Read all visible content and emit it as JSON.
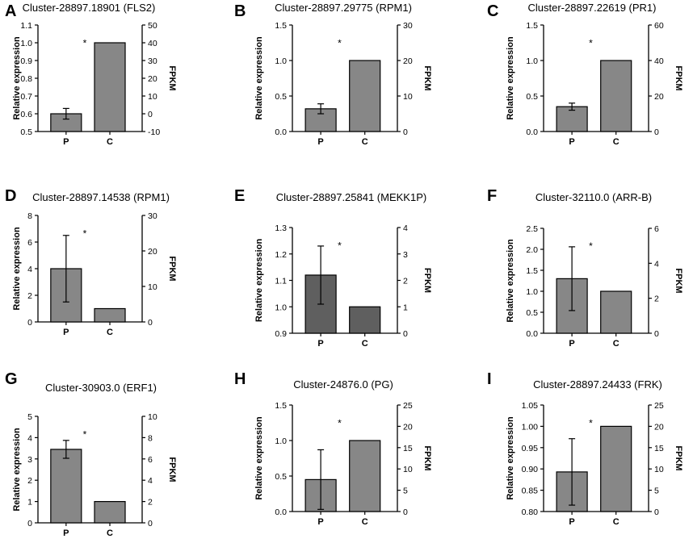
{
  "figure": {
    "colors": {
      "bar_light": "#878787",
      "bar_dark": "#5f5f5f",
      "axis": "#000000"
    }
  },
  "chart_data": [
    {
      "panel": "A",
      "type": "bar",
      "title": "Cluster-28897.18901 (FLS2)",
      "categories": [
        "P",
        "C"
      ],
      "values": [
        0.6,
        1.0
      ],
      "errors": [
        0.03,
        null
      ],
      "ylabel": "Relative expression",
      "ylim": [
        0.5,
        1.1
      ],
      "yticks": [
        "0.5",
        "0.6",
        "0.7",
        "0.8",
        "0.9",
        "1.0",
        "1.1"
      ],
      "y2label": "FPKM",
      "y2lim": [
        -10,
        50
      ],
      "y2ticks": [
        "-10",
        "0",
        "10",
        "20",
        "30",
        "40",
        "50"
      ],
      "annotation": "*",
      "bar_color": "light"
    },
    {
      "panel": "B",
      "type": "bar",
      "title": "Cluster-28897.29775 (RPM1)",
      "categories": [
        "P",
        "C"
      ],
      "values": [
        0.32,
        1.0
      ],
      "errors": [
        0.07,
        null
      ],
      "ylabel": "Relative expression",
      "ylim": [
        0,
        1.5
      ],
      "yticks": [
        "0.0",
        "0.5",
        "1.0",
        "1.5"
      ],
      "y2label": "FPKM",
      "y2lim": [
        0,
        30
      ],
      "y2ticks": [
        "0",
        "10",
        "20",
        "30"
      ],
      "annotation": "*",
      "bar_color": "light"
    },
    {
      "panel": "C",
      "type": "bar",
      "title": "Cluster-28897.22619 (PR1)",
      "categories": [
        "P",
        "C"
      ],
      "values": [
        0.35,
        1.0
      ],
      "errors": [
        0.05,
        null
      ],
      "ylabel": "Relative expression",
      "ylim": [
        0,
        1.5
      ],
      "yticks": [
        "0.0",
        "0.5",
        "1.0",
        "1.5"
      ],
      "y2label": "FPKM",
      "y2lim": [
        0,
        60
      ],
      "y2ticks": [
        "0",
        "20",
        "40",
        "60"
      ],
      "annotation": "*",
      "bar_color": "light"
    },
    {
      "panel": "D",
      "type": "bar",
      "title": "Cluster-28897.14538 (RPM1)",
      "categories": [
        "P",
        "C"
      ],
      "values": [
        4.0,
        1.0
      ],
      "errors": [
        2.5,
        null
      ],
      "ylabel": "Relative expression",
      "ylim": [
        0,
        8
      ],
      "yticks": [
        "0",
        "2",
        "4",
        "6",
        "8"
      ],
      "y2label": "FPKM",
      "y2lim": [
        0,
        30
      ],
      "y2ticks": [
        "0",
        "10",
        "20",
        "30"
      ],
      "annotation": "*",
      "bar_color": "light"
    },
    {
      "panel": "E",
      "type": "bar",
      "title": "Cluster-28897.25841 (MEKK1P)",
      "categories": [
        "P",
        "C"
      ],
      "values": [
        1.12,
        1.0
      ],
      "errors": [
        0.11,
        null
      ],
      "ylabel": "Relative expression",
      "ylim": [
        0.9,
        1.3
      ],
      "yticks": [
        "0.9",
        "1.0",
        "1.1",
        "1.2",
        "1.3"
      ],
      "y2label": "FPKM",
      "y2lim": [
        0,
        4
      ],
      "y2ticks": [
        "0",
        "1",
        "2",
        "3",
        "4"
      ],
      "annotation": "*",
      "bar_color": "dark"
    },
    {
      "panel": "F",
      "type": "bar",
      "title": "Cluster-32110.0 (ARR-B)",
      "categories": [
        "P",
        "C"
      ],
      "values": [
        1.3,
        1.0
      ],
      "errors": [
        0.76,
        null
      ],
      "ylabel": "Relative expression",
      "ylim": [
        0,
        2.5
      ],
      "yticks": [
        "0.0",
        "0.5",
        "1.0",
        "1.5",
        "2.0",
        "2.5"
      ],
      "y2label": "FPKM",
      "y2lim": [
        0,
        6
      ],
      "y2ticks": [
        "0",
        "2",
        "4",
        "6"
      ],
      "annotation": "*",
      "bar_color": "light"
    },
    {
      "panel": "G",
      "type": "bar",
      "title": "Cluster-30903.0 (ERF1)",
      "categories": [
        "P",
        "C"
      ],
      "values": [
        3.45,
        1.0
      ],
      "errors": [
        0.42,
        null
      ],
      "ylabel": "Relative expression",
      "ylim": [
        0,
        5
      ],
      "yticks": [
        "0",
        "1",
        "2",
        "3",
        "4",
        "5"
      ],
      "y2label": "FPKM",
      "y2lim": [
        0,
        10
      ],
      "y2ticks": [
        "0",
        "2",
        "4",
        "6",
        "8",
        "10"
      ],
      "annotation": "*",
      "bar_color": "light"
    },
    {
      "panel": "H",
      "type": "bar",
      "title": "Cluster-24876.0 (PG)",
      "categories": [
        "P",
        "C"
      ],
      "values": [
        0.45,
        1.0
      ],
      "errors": [
        0.42,
        null
      ],
      "ylabel": "Relative expression",
      "ylim": [
        0,
        1.5
      ],
      "yticks": [
        "0.0",
        "0.5",
        "1.0",
        "1.5"
      ],
      "y2label": "FPKM",
      "y2lim": [
        0,
        25
      ],
      "y2ticks": [
        "0",
        "5",
        "10",
        "15",
        "20",
        "25"
      ],
      "annotation": "*",
      "bar_color": "light"
    },
    {
      "panel": "I",
      "type": "bar",
      "title": "Cluster-28897.24433 (FRK)",
      "categories": [
        "P",
        "C"
      ],
      "values": [
        0.893,
        1.0
      ],
      "errors": [
        0.078,
        null
      ],
      "ylabel": "Relative expression",
      "ylim": [
        0.8,
        1.05
      ],
      "yticks": [
        "0.80",
        "0.85",
        "0.90",
        "0.95",
        "1.00",
        "1.05"
      ],
      "y2label": "FPKM",
      "y2lim": [
        0,
        25
      ],
      "y2ticks": [
        "0",
        "5",
        "10",
        "15",
        "20",
        "25"
      ],
      "annotation": "*",
      "bar_color": "light"
    }
  ]
}
